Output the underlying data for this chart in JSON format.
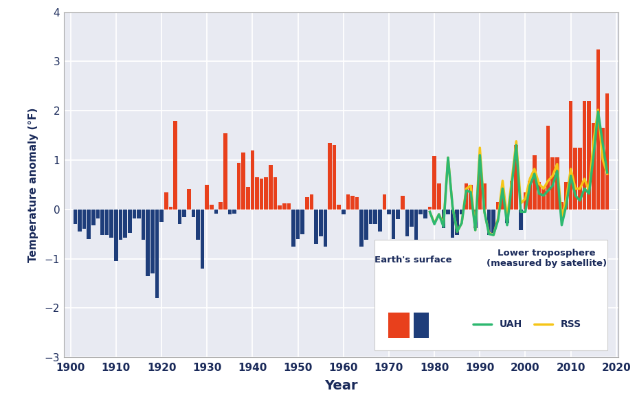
{
  "xlabel": "Year",
  "ylabel": "Temperature anomaly (°F)",
  "plot_bg_color": "#e8eaf2",
  "fig_bg_color": "#ffffff",
  "bar_color_pos": "#e8401c",
  "bar_color_neg": "#1e3d7a",
  "uah_color": "#2db870",
  "rss_color": "#f5c518",
  "ylim": [
    -3.0,
    4.0
  ],
  "xlim": [
    1898.5,
    2020.5
  ],
  "yticks": [
    -3,
    -2,
    -1,
    0,
    1,
    2,
    3,
    4
  ],
  "xticks": [
    1900,
    1910,
    1920,
    1930,
    1940,
    1950,
    1960,
    1970,
    1980,
    1990,
    2000,
    2010,
    2020
  ],
  "surface_years": [
    1901,
    1902,
    1903,
    1904,
    1905,
    1906,
    1907,
    1908,
    1909,
    1910,
    1911,
    1912,
    1913,
    1914,
    1915,
    1916,
    1917,
    1918,
    1919,
    1920,
    1921,
    1922,
    1923,
    1924,
    1925,
    1926,
    1927,
    1928,
    1929,
    1930,
    1931,
    1932,
    1933,
    1934,
    1935,
    1936,
    1937,
    1938,
    1939,
    1940,
    1941,
    1942,
    1943,
    1944,
    1945,
    1946,
    1947,
    1948,
    1949,
    1950,
    1951,
    1952,
    1953,
    1954,
    1955,
    1956,
    1957,
    1958,
    1959,
    1960,
    1961,
    1962,
    1963,
    1964,
    1965,
    1966,
    1967,
    1968,
    1969,
    1970,
    1971,
    1972,
    1973,
    1974,
    1975,
    1976,
    1977,
    1978,
    1979,
    1980,
    1981,
    1982,
    1983,
    1984,
    1985,
    1986,
    1987,
    1988,
    1989,
    1990,
    1991,
    1992,
    1993,
    1994,
    1995,
    1996,
    1997,
    1998,
    1999,
    2000,
    2001,
    2002,
    2003,
    2004,
    2005,
    2006,
    2007,
    2008,
    2009,
    2010,
    2011,
    2012,
    2013,
    2014,
    2015,
    2016,
    2017,
    2018
  ],
  "surface_values": [
    -0.3,
    -0.45,
    -0.4,
    -0.6,
    -0.32,
    -0.18,
    -0.52,
    -0.52,
    -0.58,
    -1.05,
    -0.62,
    -0.58,
    -0.48,
    -0.18,
    -0.18,
    -0.62,
    -1.35,
    -1.3,
    -1.8,
    -0.25,
    0.35,
    0.05,
    1.8,
    -0.3,
    -0.15,
    0.42,
    -0.15,
    -0.62,
    -1.2,
    0.5,
    0.1,
    -0.08,
    0.15,
    1.55,
    -0.1,
    -0.08,
    0.95,
    1.15,
    0.45,
    1.2,
    0.65,
    0.62,
    0.65,
    0.9,
    0.65,
    0.08,
    0.12,
    0.12,
    -0.75,
    -0.6,
    -0.5,
    0.25,
    0.3,
    -0.7,
    -0.55,
    -0.75,
    1.35,
    1.3,
    0.1,
    -0.1,
    0.3,
    0.28,
    0.25,
    -0.75,
    -0.62,
    -0.3,
    -0.3,
    -0.45,
    0.3,
    -0.1,
    -0.6,
    -0.2,
    0.28,
    -0.55,
    -0.35,
    -0.65,
    -0.1,
    -0.18,
    0.05,
    1.08,
    0.52,
    -0.38,
    -0.1,
    -0.58,
    -0.52,
    -0.1,
    0.52,
    0.5,
    -0.38,
    1.05,
    0.52,
    -0.52,
    -0.48,
    0.15,
    0.48,
    -0.28,
    0.58,
    1.3,
    -0.42,
    0.35,
    0.58,
    1.1,
    0.55,
    0.45,
    1.7,
    1.05,
    1.05,
    0.15,
    0.55,
    2.2,
    1.25,
    1.25,
    2.2,
    2.2,
    1.75,
    3.25,
    1.65,
    2.35
  ],
  "uah_years": [
    1979,
    1980,
    1981,
    1982,
    1983,
    1984,
    1985,
    1986,
    1987,
    1988,
    1989,
    1990,
    1991,
    1992,
    1993,
    1994,
    1995,
    1996,
    1997,
    1998,
    1999,
    2000,
    2001,
    2002,
    2003,
    2004,
    2005,
    2006,
    2007,
    2008,
    2009,
    2010,
    2011,
    2012,
    2013,
    2014,
    2015,
    2016,
    2017,
    2018
  ],
  "uah_values": [
    -0.05,
    -0.3,
    -0.1,
    -0.35,
    1.05,
    0.05,
    -0.45,
    -0.28,
    0.38,
    0.35,
    -0.42,
    1.1,
    -0.05,
    -0.5,
    -0.52,
    -0.22,
    0.42,
    -0.32,
    0.48,
    1.3,
    -0.05,
    -0.05,
    0.48,
    0.72,
    0.32,
    0.28,
    0.38,
    0.48,
    0.78,
    -0.32,
    0.08,
    0.68,
    0.28,
    0.18,
    0.42,
    0.32,
    1.08,
    1.98,
    1.35,
    0.75
  ],
  "rss_years": [
    1979,
    1980,
    1981,
    1982,
    1983,
    1984,
    1985,
    1986,
    1987,
    1988,
    1989,
    1990,
    1991,
    1992,
    1993,
    1994,
    1995,
    1996,
    1997,
    1998,
    1999,
    2000,
    2001,
    2002,
    2003,
    2004,
    2005,
    2006,
    2007,
    2008,
    2009,
    2010,
    2011,
    2012,
    2013,
    2014,
    2015,
    2016,
    2017,
    2018
  ],
  "rss_values": [
    -0.05,
    -0.28,
    -0.1,
    -0.3,
    1.05,
    0.05,
    -0.45,
    -0.28,
    0.42,
    0.48,
    -0.42,
    1.25,
    -0.05,
    -0.48,
    -0.52,
    -0.18,
    0.58,
    -0.18,
    0.58,
    1.38,
    0.12,
    0.22,
    0.62,
    0.82,
    0.52,
    0.42,
    0.58,
    0.68,
    0.92,
    -0.18,
    0.22,
    0.82,
    0.42,
    0.42,
    0.62,
    0.38,
    1.38,
    2.02,
    1.02,
    0.72
  ]
}
